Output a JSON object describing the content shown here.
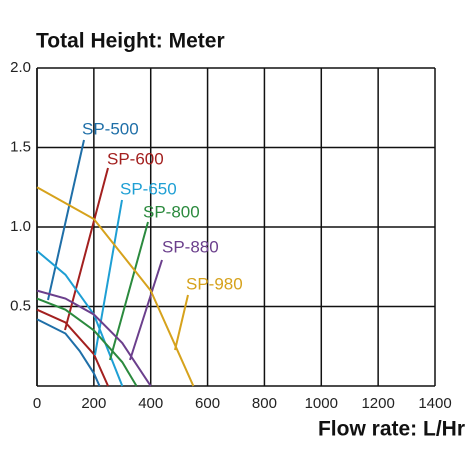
{
  "chart_data": {
    "type": "line",
    "title": "Total Height:  Meter",
    "x_label": "Flow rate:  L/Hr",
    "xlim": [
      0,
      1400
    ],
    "xticks": [
      0,
      200,
      400,
      600,
      800,
      1000,
      1200,
      1400
    ],
    "ylim": [
      0,
      2.0
    ],
    "yticks": [
      {
        "value": 0.5,
        "label": "0.5"
      },
      {
        "value": 1.0,
        "label": "1.0"
      },
      {
        "value": 1.5,
        "label": "1.5"
      },
      {
        "value": 2.0,
        "label": "2.0"
      }
    ],
    "grid": true,
    "series": [
      {
        "name": "SP-500",
        "color": "#1f6fa8",
        "x": [
          0,
          100,
          150,
          200,
          220
        ],
        "values": [
          0.42,
          0.33,
          0.22,
          0.08,
          0
        ]
      },
      {
        "name": "SP-600",
        "color": "#a3201f",
        "x": [
          0,
          100,
          200,
          250
        ],
        "values": [
          0.48,
          0.4,
          0.2,
          0
        ]
      },
      {
        "name": "SP-650",
        "color": "#1e9fd4",
        "x": [
          0,
          100,
          200,
          300
        ],
        "values": [
          0.85,
          0.7,
          0.45,
          0
        ]
      },
      {
        "name": "SP-800",
        "color": "#2b8a3e",
        "x": [
          0,
          100,
          200,
          300,
          350
        ],
        "values": [
          0.55,
          0.48,
          0.35,
          0.15,
          0
        ]
      },
      {
        "name": "SP-880",
        "color": "#6b3f8c",
        "x": [
          0,
          100,
          200,
          300,
          400
        ],
        "values": [
          0.6,
          0.55,
          0.45,
          0.27,
          0
        ]
      },
      {
        "name": "SP-980",
        "color": "#d6a21c",
        "x": [
          0,
          200,
          400,
          500,
          550
        ],
        "values": [
          1.25,
          1.05,
          0.6,
          0.2,
          0
        ]
      }
    ]
  }
}
